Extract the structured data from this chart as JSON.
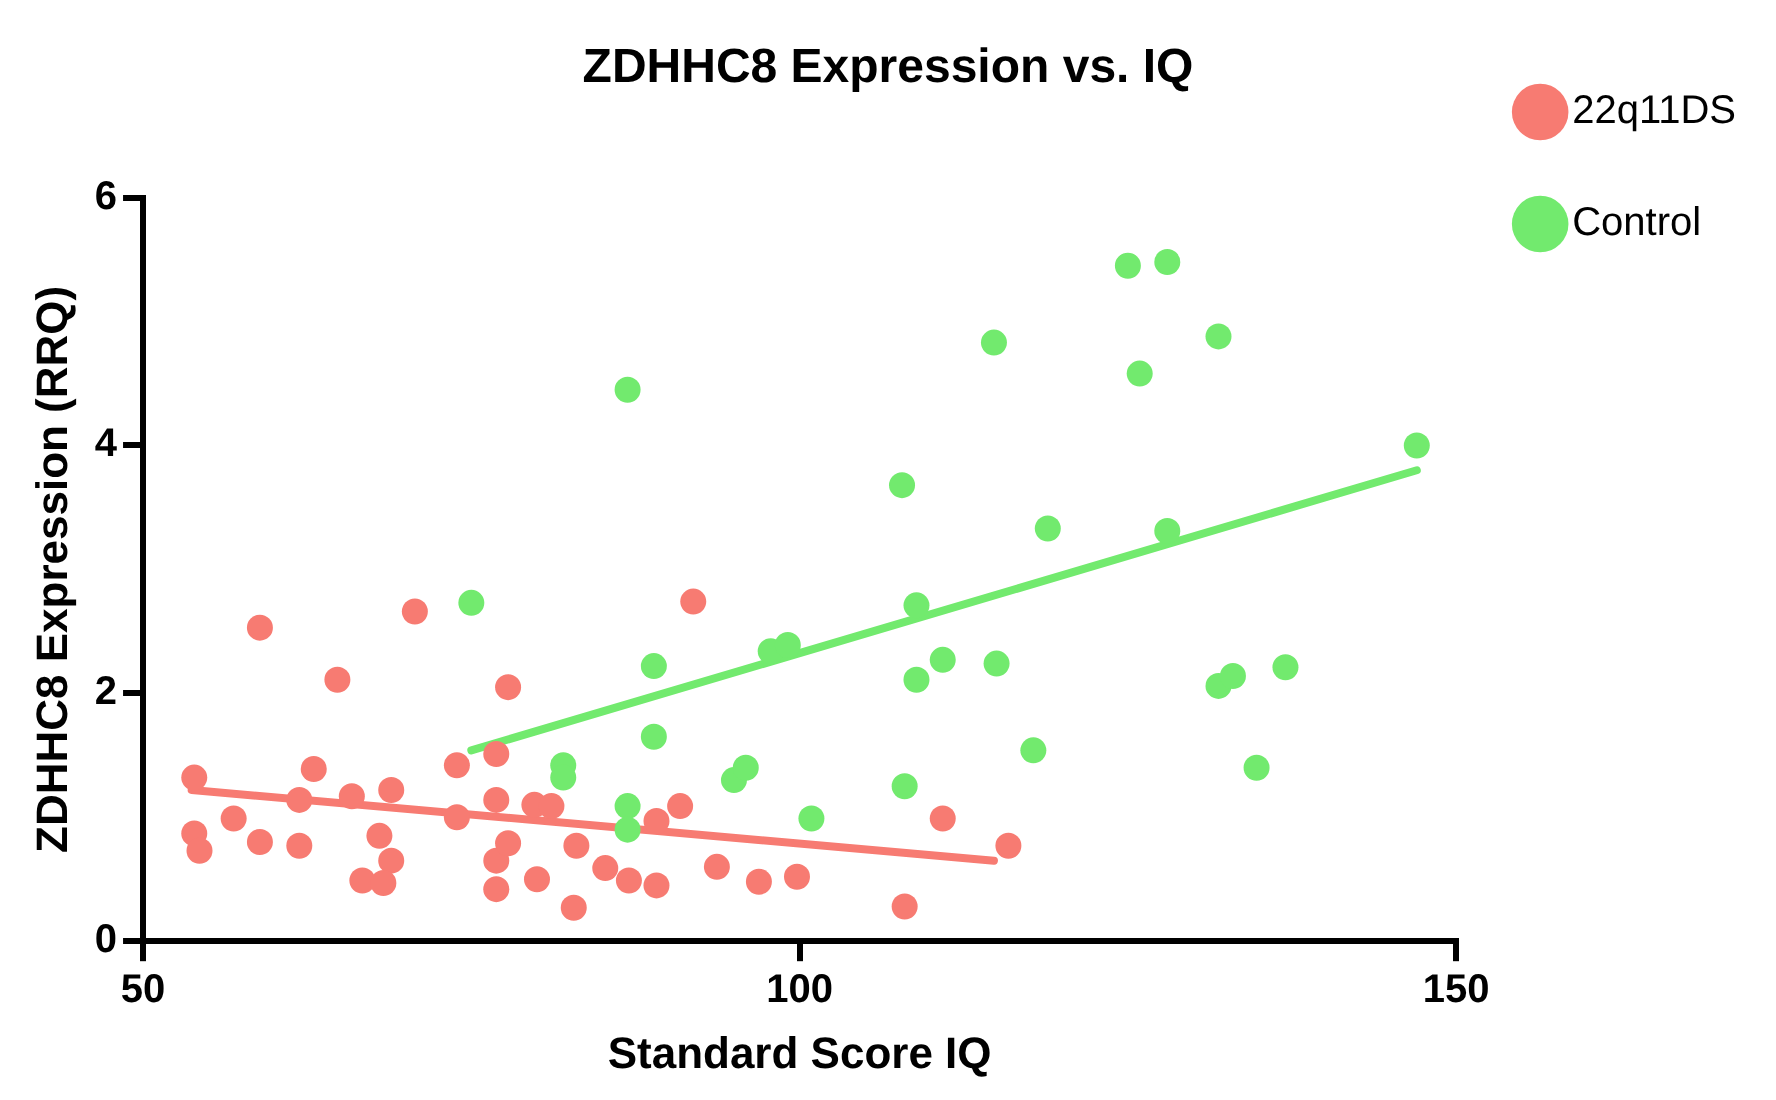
{
  "chart_data": {
    "type": "scatter",
    "title": "ZDHHC8 Expression vs. IQ",
    "xlabel": "Standard Score IQ",
    "ylabel": "ZDHHC8 Expression (RRQ)",
    "xlim": [
      50,
      150
    ],
    "xticks": [
      50,
      100,
      150
    ],
    "ylim": [
      0,
      6
    ],
    "yticks": [
      0,
      2,
      4,
      6
    ],
    "grid": false,
    "legend": "right",
    "marker": "circle",
    "series": [
      {
        "name": "22q11DS",
        "color": "#f77b72",
        "x": [
          58.9,
          70.7,
          64.8,
          77.8,
          53.9,
          63,
          73.9,
          76.9,
          61.9,
          65.9,
          68.9,
          73.9,
          76.9,
          79.8,
          81.1,
          56.9,
          53.9,
          54.3,
          58.9,
          61.9,
          68,
          68.9,
          66.7,
          68.3,
          76.9,
          77.8,
          76.9,
          80,
          83,
          82.8,
          91.9,
          90.9,
          89.1,
          85.2,
          87,
          89.1,
          93.7,
          96.9,
          99.8,
          108,
          110.9,
          115.9
        ],
        "values": [
          2.53,
          2.66,
          2.11,
          2.05,
          1.32,
          1.39,
          1.42,
          1.51,
          1.14,
          1.17,
          1.22,
          1.0,
          1.14,
          1.1,
          1.09,
          0.99,
          0.87,
          0.73,
          0.8,
          0.77,
          0.85,
          0.65,
          0.49,
          0.47,
          0.65,
          0.79,
          0.42,
          0.5,
          0.77,
          0.27,
          2.74,
          1.09,
          0.97,
          0.59,
          0.49,
          0.45,
          0.6,
          0.48,
          0.52,
          0.28,
          0.99,
          0.77
        ]
      },
      {
        "name": "Control",
        "color": "#72ea6e",
        "x": [
          75,
          82,
          82,
          108.9,
          97.8,
          99.1,
          88.9,
          108.9,
          110.9,
          115,
          88.9,
          117.8,
          95,
          95.9,
          108,
          86.9,
          86.9,
          100.9,
          125,
          128,
          114.8,
          131.9,
          125.9,
          86.9,
          147,
          107.8,
          118.9,
          128,
          131.9,
          133,
          137,
          134.8
        ],
        "values": [
          2.73,
          1.42,
          1.32,
          2.71,
          2.34,
          2.39,
          2.22,
          2.11,
          2.27,
          2.24,
          1.65,
          1.54,
          1.3,
          1.4,
          1.25,
          1.09,
          0.9,
          0.99,
          5.45,
          5.48,
          4.83,
          4.88,
          4.58,
          4.45,
          4.0,
          3.68,
          3.33,
          3.31,
          2.06,
          2.14,
          2.21,
          1.4
        ]
      },
      {
        "type": "line",
        "color": "#f77b72",
        "marker": "none",
        "x": [
          53.7,
          114.8
        ],
        "values": [
          1.22,
          0.65
        ]
      },
      {
        "type": "line",
        "color": "#72ea6e",
        "marker": "none",
        "x": [
          75,
          147
        ],
        "values": [
          1.54,
          3.8
        ]
      }
    ]
  }
}
